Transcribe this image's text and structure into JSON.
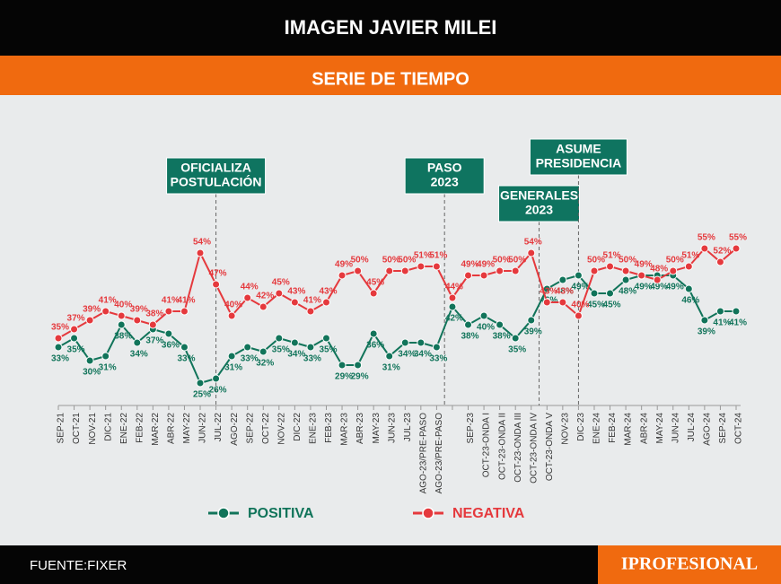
{
  "header": {
    "title": "IMAGEN JAVIER MILEI",
    "subtitle": "SERIE DE TIEMPO"
  },
  "chart_data": {
    "type": "line",
    "categories": [
      "SEP-21",
      "OCT-21",
      "NOV-21",
      "DIC-21",
      "ENE-22",
      "FEB-22",
      "MAR-22",
      "ABR-22",
      "MAY-22",
      "JUN-22",
      "JUL-22",
      "AGO-22",
      "SEP-22",
      "OCT-22",
      "NOV-22",
      "DIC-22",
      "ENE-23",
      "FEB-23",
      "MAR-23",
      "ABR-23",
      "MAY-23",
      "JUN-23",
      "JUL-23",
      "AGO-23/PRE-PASO",
      "AGO-23/PRE-PASO",
      null,
      "SEP-23",
      "OCT-23-ONDA I",
      "OCT-23-ONDA II",
      "OCT-23-ONDA III",
      "OCT-23-ONDA IV",
      "OCT-23-ONDA V",
      "NOV-23",
      "DIC-23",
      "ENE-24",
      "FEB-24",
      "MAR-24",
      "ABR-24",
      "MAY-24",
      "JUN-24",
      "JUL-24",
      "AGO-24",
      "SEP-24",
      "OCT-24"
    ],
    "series": [
      {
        "name": "POSITIVA",
        "color": "#11745a",
        "values": [
          33,
          35,
          30,
          31,
          38,
          34,
          37,
          36,
          33,
          25,
          26,
          31,
          33,
          32,
          35,
          34,
          33,
          35,
          29,
          29,
          36,
          31,
          34,
          34,
          33,
          42,
          38,
          40,
          38,
          35,
          39,
          46,
          48,
          49,
          45,
          45,
          48,
          49,
          49,
          49,
          46,
          39,
          41,
          41
        ],
        "value_labels": [
          "33%",
          "35%",
          "30%",
          "31%",
          "38%",
          "34%",
          "37%",
          "36%",
          "33%",
          "25%",
          "26%",
          "31%",
          "33%",
          "32%",
          "35%",
          "34%",
          "33%",
          "35%",
          "29%",
          "29%",
          "36%",
          "31%",
          "34%",
          "34%",
          "33%",
          "42%",
          "38%",
          "40%",
          "38%",
          "35%",
          "39%",
          "46%",
          "48%",
          "49%",
          "45%",
          "45%",
          "48%",
          "49%",
          "49%",
          "49%",
          "46%",
          "39%",
          "41%",
          "41%"
        ]
      },
      {
        "name": "NEGATIVA",
        "color": "#e5393d",
        "values": [
          35,
          37,
          39,
          41,
          40,
          39,
          38,
          41,
          41,
          54,
          47,
          40,
          44,
          42,
          45,
          43,
          41,
          43,
          49,
          50,
          45,
          50,
          50,
          51,
          51,
          44,
          49,
          49,
          50,
          50,
          54,
          43,
          43,
          40,
          50,
          51,
          50,
          49,
          48,
          50,
          51,
          55,
          52,
          55
        ],
        "value_labels": [
          "35%",
          "37%",
          "39%",
          "41%",
          "40%",
          "39%",
          "38%",
          "41%",
          "41%",
          "54%",
          "47%",
          "40%",
          "44%",
          "42%",
          "45%",
          "43%",
          "41%",
          "43%",
          "49%",
          "50%",
          "45%",
          "50%",
          "50%",
          "51%",
          "51%",
          "44%",
          "49%",
          "49%",
          "50%",
          "50%",
          "54%",
          "43%",
          "43%",
          "40%",
          "50%",
          "51%",
          "50%",
          "49%",
          "48%",
          "50%",
          "51%",
          "55%",
          "52%",
          "55%"
        ]
      }
    ],
    "ylim": [
      20,
      60
    ],
    "annotations": [
      {
        "text": [
          "OFICIALIZA",
          "POSTULACIÓN"
        ]
      },
      {
        "text": [
          "PASO",
          "2023"
        ]
      },
      {
        "text": [
          "GENERALES",
          "2023"
        ]
      },
      {
        "text": [
          "ASUME",
          "PRESIDENCIA"
        ]
      }
    ]
  },
  "footer": {
    "source": "FUENTE:FIXER",
    "logo": "IPROFESIONAL"
  }
}
